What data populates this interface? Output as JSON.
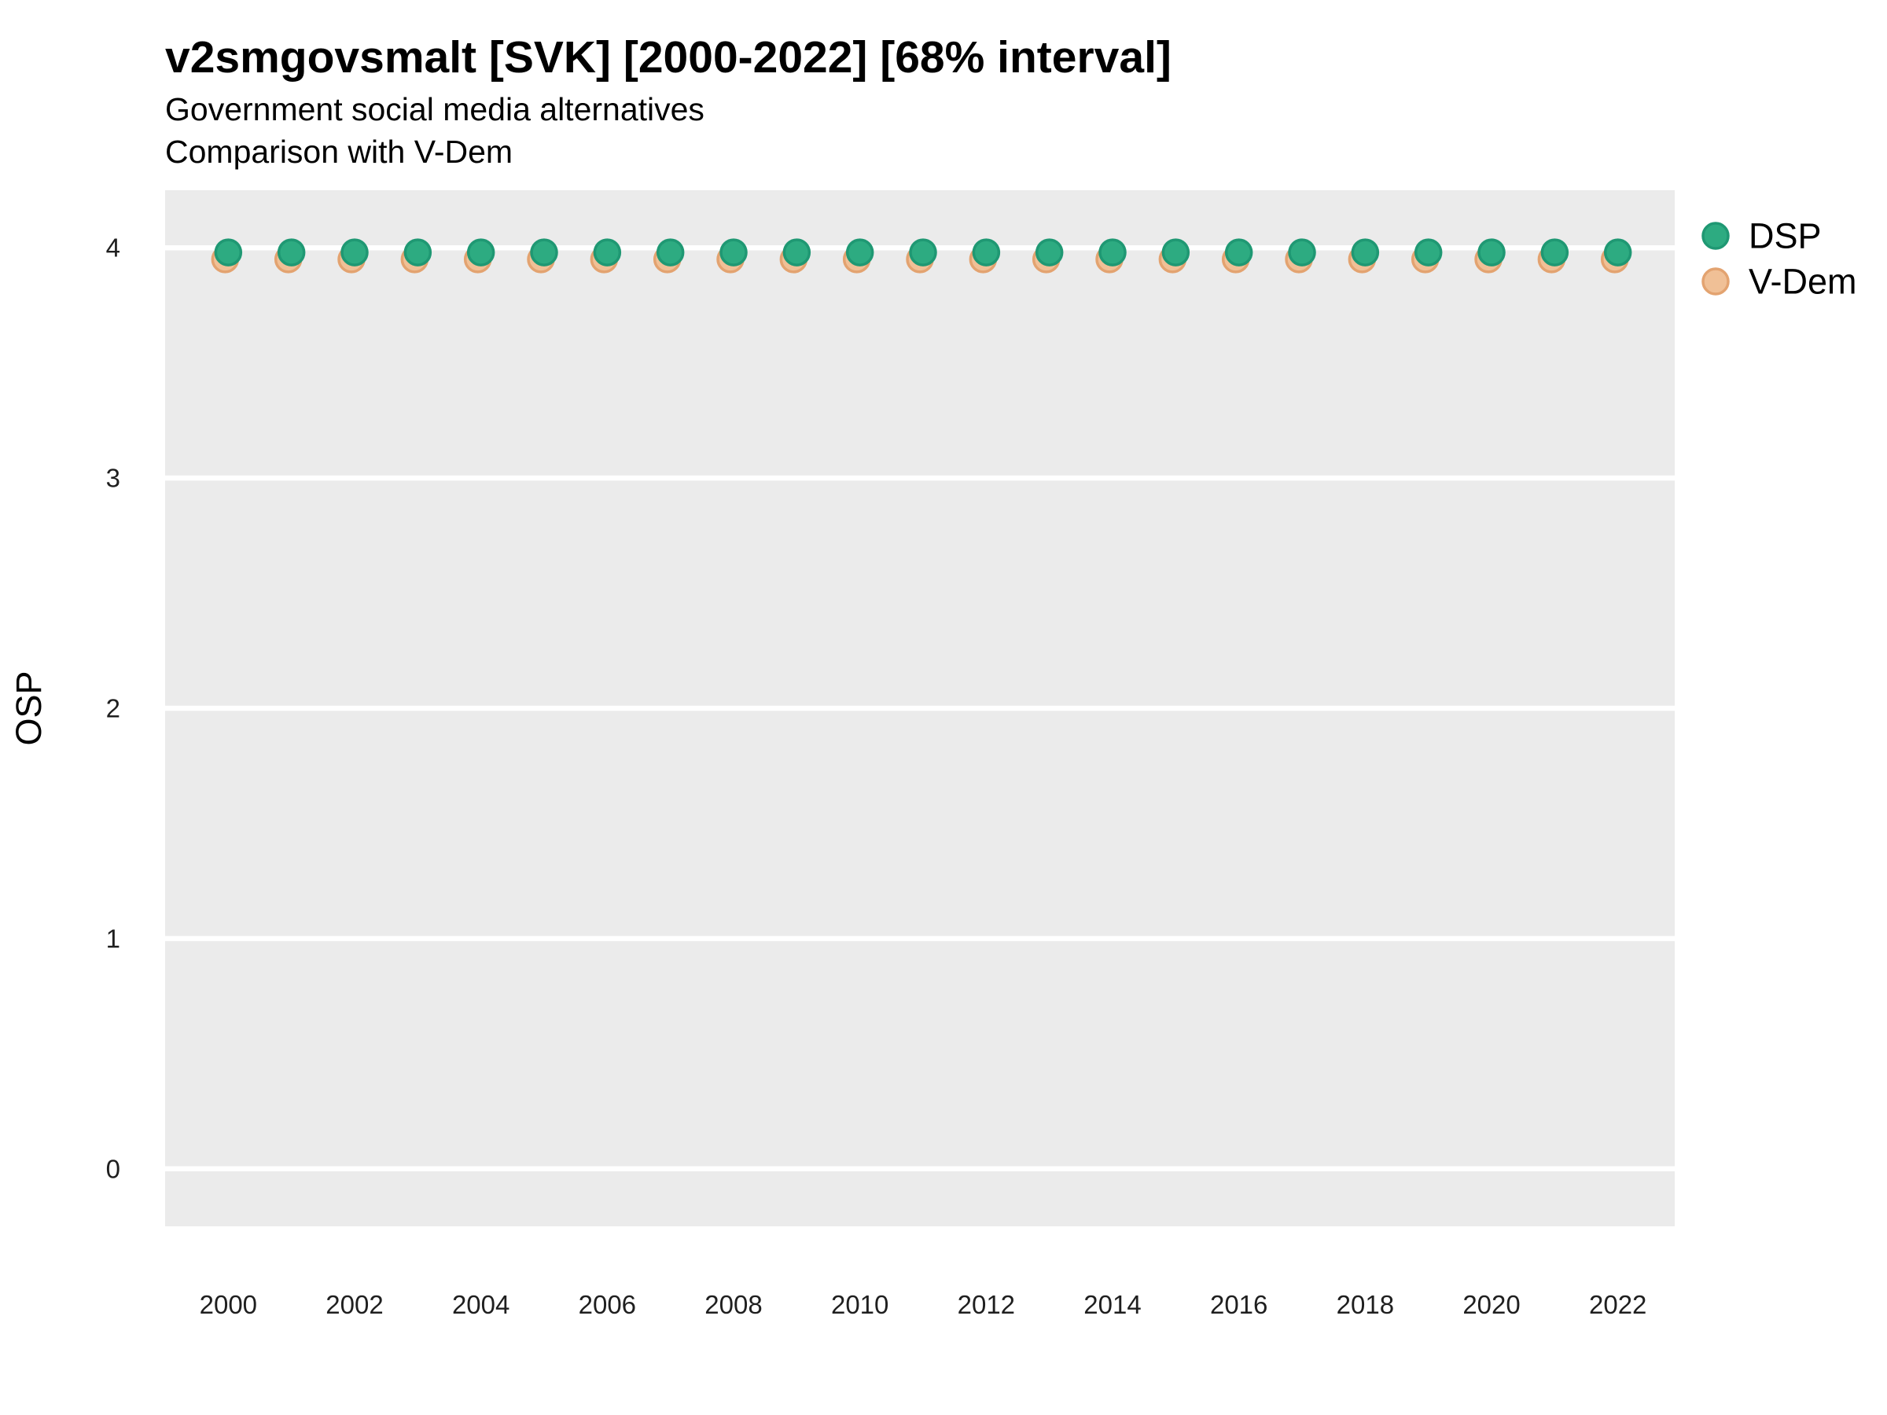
{
  "header": {
    "title": "v2smgovsmalt [SVK] [2000-2022] [68% interval]",
    "subtitle": "Government social media alternatives",
    "subtitle2": "Comparison with V-Dem"
  },
  "chart_data": {
    "type": "scatter",
    "title": "v2smgovsmalt [SVK] [2000-2022] [68% interval]",
    "subtitle": "Government social media alternatives",
    "annotation": "Comparison with V-Dem",
    "xlabel": "",
    "ylabel": "OSP",
    "x": [
      2000,
      2001,
      2002,
      2003,
      2004,
      2005,
      2006,
      2007,
      2008,
      2009,
      2010,
      2011,
      2012,
      2013,
      2014,
      2015,
      2016,
      2017,
      2018,
      2019,
      2020,
      2021,
      2022
    ],
    "series": [
      {
        "name": "V-Dem",
        "fill": "#f0c096",
        "stroke": "#e3a370",
        "values": [
          3.95,
          3.95,
          3.95,
          3.95,
          3.95,
          3.95,
          3.95,
          3.95,
          3.95,
          3.95,
          3.95,
          3.95,
          3.95,
          3.95,
          3.95,
          3.95,
          3.95,
          3.95,
          3.95,
          3.95,
          3.95,
          3.95,
          3.95
        ]
      },
      {
        "name": "DSP",
        "fill": "#2dab81",
        "stroke": "#1f9873",
        "values": [
          3.98,
          3.98,
          3.98,
          3.98,
          3.98,
          3.98,
          3.98,
          3.98,
          3.98,
          3.98,
          3.98,
          3.98,
          3.98,
          3.98,
          3.98,
          3.98,
          3.98,
          3.98,
          3.98,
          3.98,
          3.98,
          3.98,
          3.98
        ]
      }
    ],
    "legend_order": [
      "DSP",
      "V-Dem"
    ],
    "legend_position": "right",
    "yticks": [
      0,
      1,
      2,
      3,
      4
    ],
    "xticks": [
      2000,
      2002,
      2004,
      2006,
      2008,
      2010,
      2012,
      2014,
      2016,
      2018,
      2020,
      2022
    ],
    "ylim": [
      -0.25,
      4.25
    ],
    "xlim": [
      1999.0,
      2022.9
    ],
    "grid": "horizontal-major-only",
    "panel_bg": "#ebebeb",
    "grid_color": "#ffffff"
  }
}
